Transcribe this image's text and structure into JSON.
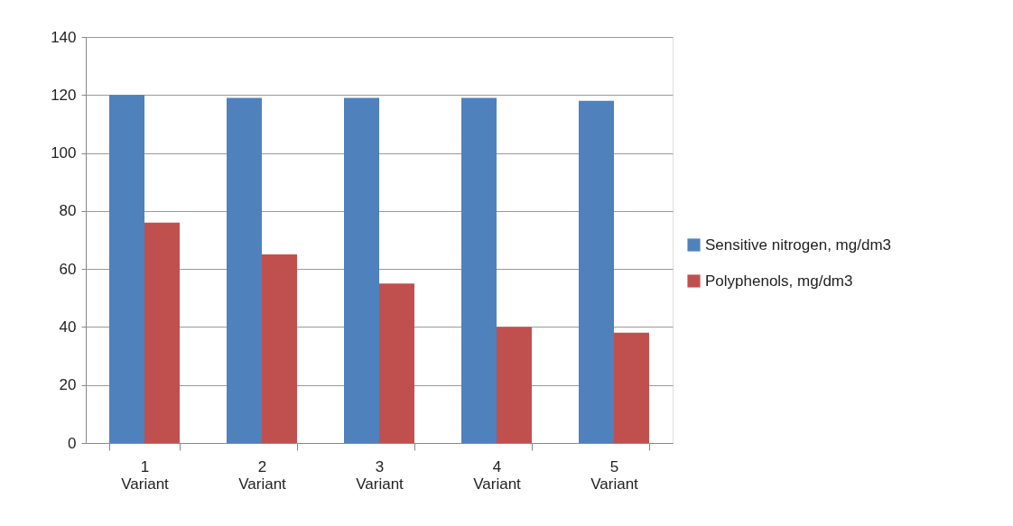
{
  "chart_data": {
    "type": "bar",
    "categories": [
      "1\nVariant",
      "2\nVariant",
      "3\nVariant",
      "4\nVariant",
      "5\nVariant"
    ],
    "series": [
      {
        "name": "Sensitive nitrogen, mg/dm3",
        "color": "#4f81bd",
        "values": [
          120,
          119,
          119,
          119,
          118
        ]
      },
      {
        "name": "Polyphenols, mg/dm3",
        "color": "#c0504d",
        "values": [
          76,
          65,
          55,
          40,
          38
        ]
      }
    ],
    "ylim": [
      0,
      140
    ],
    "yticks": [
      0,
      20,
      40,
      60,
      80,
      100,
      120,
      140
    ],
    "grid": "y",
    "legend": "right"
  }
}
